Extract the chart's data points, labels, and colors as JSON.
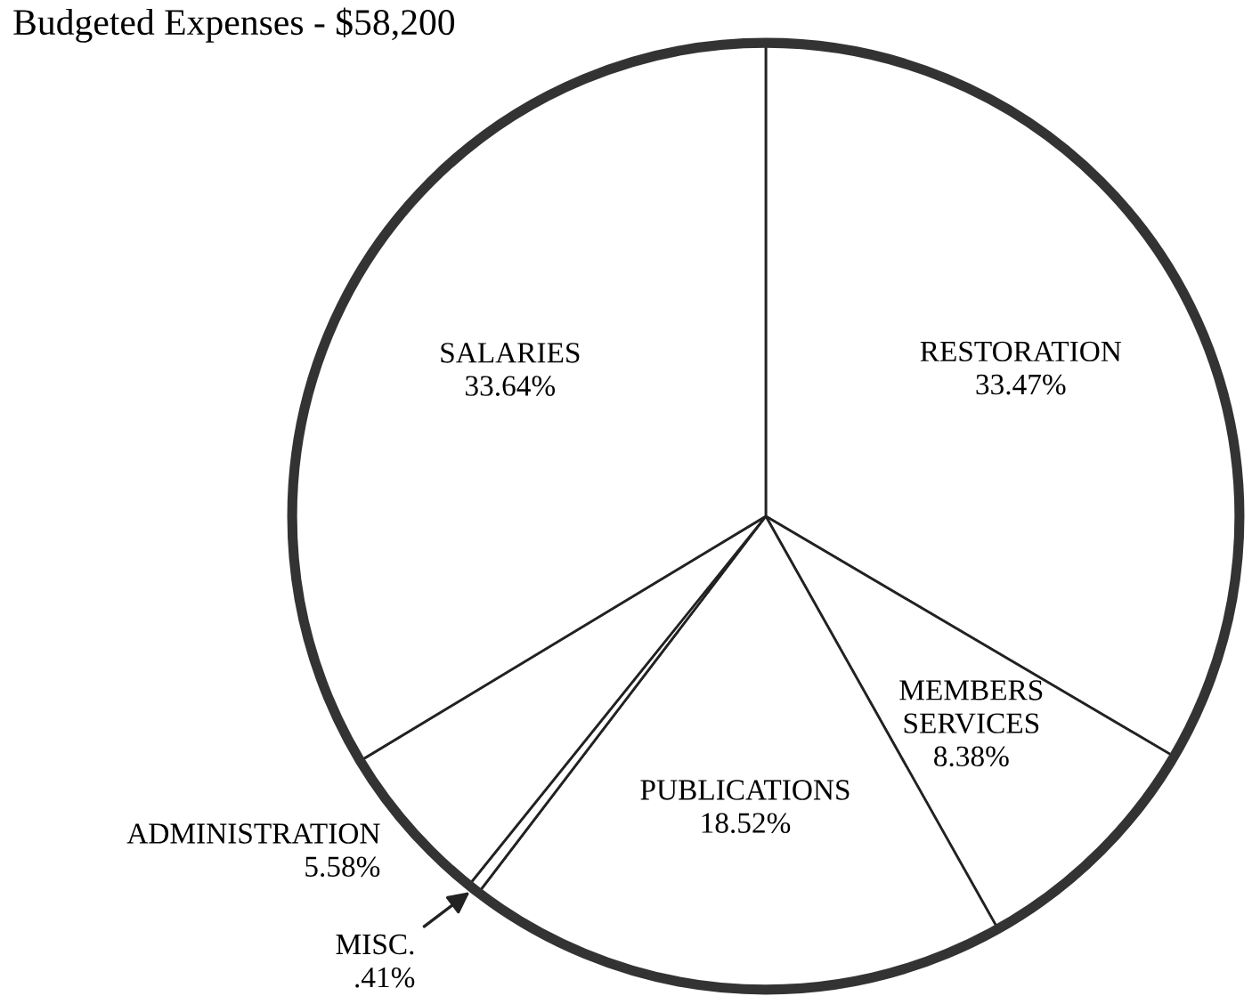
{
  "chart_data": {
    "type": "pie",
    "title": "Budgeted Expenses - $58,200",
    "categories": [
      "RESTORATION",
      "MEMBERS SERVICES",
      "PUBLICATIONS",
      "MISC.",
      "ADMINISTRATION",
      "SALARIES"
    ],
    "values": [
      33.47,
      8.38,
      18.52,
      0.41,
      5.58,
      33.64
    ],
    "value_labels": [
      "33.47%",
      "8.38%",
      "18.52%",
      ".41%",
      "5.58%",
      "33.64%"
    ],
    "colors": [
      "#ffffff",
      "#ffffff",
      "#ffffff",
      "#ffffff",
      "#ffffff",
      "#ffffff"
    ],
    "legend": false
  }
}
